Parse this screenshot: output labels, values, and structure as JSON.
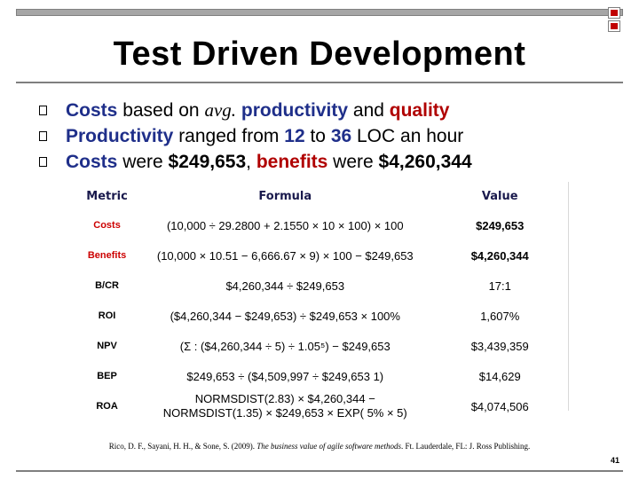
{
  "title": "Test Driven Development",
  "bullets": [
    {
      "p1": "Costs",
      "p2": " based on ",
      "p3": "avg.",
      "p4": " ",
      "p5": "productivity",
      "p6": " and ",
      "p7": "quality"
    },
    {
      "p1": "Productivity",
      "p2": " ranged from ",
      "p3": "12",
      "p4": " to ",
      "p5": "36",
      "p6": " LOC an hour"
    },
    {
      "p1": "Costs",
      "p2": " were ",
      "p3": "$249,653",
      "p4": ", ",
      "p5": "benefits",
      "p6": " were ",
      "p7": "$4,260,344"
    }
  ],
  "table": {
    "headers": {
      "metric": "Metric",
      "formula": "Formula",
      "value": "Value"
    },
    "rows": [
      {
        "metric": "Costs",
        "formula": "(10,000 ÷ 29.2800 + 2.1550 × 10 × 100) × 100",
        "value": "$249,653"
      },
      {
        "metric": "Benefits",
        "formula": "(10,000 × 10.51 − 6,666.67 × 9) × 100 − $249,653",
        "value": "$4,260,344"
      },
      {
        "metric": "B/CR",
        "formula": "$4,260,344 ÷ $249,653",
        "value": "17:1"
      },
      {
        "metric": "ROI",
        "formula": "($4,260,344 − $249,653) ÷ $249,653 × 100%",
        "value": "1,607%"
      },
      {
        "metric": "NPV",
        "formula": "(Σ : ($4,260,344 ÷ 5) ÷ 1.05⁵) − $249,653",
        "value": "$3,439,359"
      },
      {
        "metric": "BEP",
        "formula": "$249,653 ÷ ($4,509,997 ÷ $249,653     1)",
        "value": "$14,629"
      },
      {
        "metric": "ROA",
        "formula_line1": "NORMSDIST(2.83) × $4,260,344 −",
        "formula_line2": "NORMSDIST(1.35) × $249,653 × EXP(   5% × 5)",
        "value": "$4,074,506"
      }
    ]
  },
  "footnote_a": "Rico, D. F., Sayani, H. H., & Sone, S. (2009). ",
  "footnote_b": "The business value of agile software methods",
  "footnote_c": ". Ft. Lauderdale, FL: J. Ross Publishing.",
  "page_number": "41",
  "colors": {
    "accent_blue": "#1f2f8a",
    "accent_red": "#b00000",
    "table_red": "#cc0000",
    "rule_gray": "#7f7f7f"
  }
}
